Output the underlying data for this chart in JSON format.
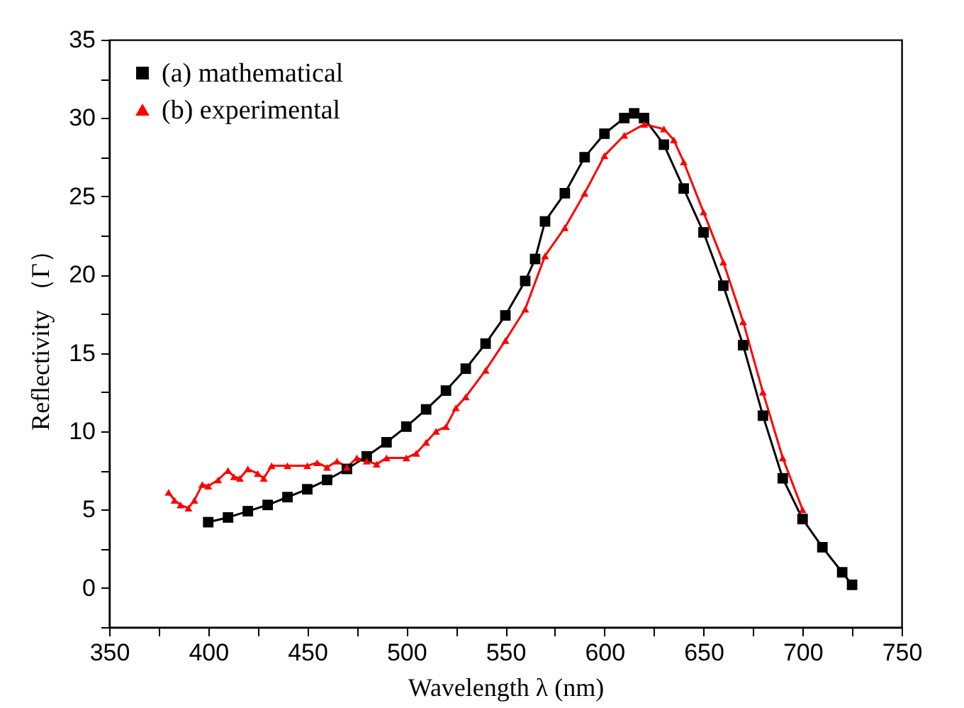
{
  "chart_data": {
    "type": "line",
    "xlabel": "Wavelength λ (nm)",
    "ylabel": "Reflectivity （Γ）",
    "xlim": [
      350,
      750
    ],
    "ylim": [
      -2.5,
      35
    ],
    "xticks": [
      350,
      {
        "value": 375,
        "label": null
      },
      400,
      {
        "value": 425,
        "label": null
      },
      450,
      {
        "value": 475,
        "label": null
      },
      500,
      {
        "value": 525,
        "label": null
      },
      550,
      {
        "value": 575,
        "label": null
      },
      600,
      {
        "value": 625,
        "label": null
      },
      650,
      {
        "value": 675,
        "label": null
      },
      700,
      {
        "value": 725,
        "label": null
      },
      750
    ],
    "yticks": [
      {
        "value": -2.5,
        "label": null
      },
      0,
      {
        "value": 2.5,
        "label": null
      },
      5,
      {
        "value": 7.5,
        "label": null
      },
      10,
      {
        "value": 12.5,
        "label": null
      },
      15,
      {
        "value": 17.5,
        "label": null
      },
      20,
      {
        "value": 22.5,
        "label": null
      },
      25,
      {
        "value": 27.5,
        "label": null
      },
      30,
      {
        "value": 32.5,
        "label": null
      },
      35
    ],
    "grid": false,
    "legend": "top left",
    "line_style": "solid",
    "series": [
      {
        "name": "(a) mathematical",
        "color": "#000000",
        "marker": "square",
        "x": [
          400,
          410,
          420,
          430,
          440,
          450,
          460,
          470,
          480,
          490,
          500,
          510,
          520,
          530,
          540,
          550,
          560,
          565,
          570,
          580,
          590,
          600,
          610,
          615,
          620,
          630,
          640,
          650,
          660,
          670,
          680,
          690,
          700,
          710,
          720,
          725
        ],
        "values": [
          4.2,
          4.5,
          4.9,
          5.3,
          5.8,
          6.3,
          6.9,
          7.6,
          8.4,
          9.3,
          10.3,
          11.4,
          12.6,
          14.0,
          15.6,
          17.4,
          19.6,
          21.0,
          23.4,
          25.2,
          27.5,
          29.0,
          30.0,
          30.3,
          30.0,
          28.3,
          25.5,
          22.7,
          19.3,
          15.5,
          11.0,
          7.0,
          4.4,
          2.6,
          1.0,
          0.2
        ]
      },
      {
        "name": "(b) experimental",
        "color": "#ff0000",
        "marker": "triangle",
        "x": [
          380,
          383,
          386,
          390,
          393,
          397,
          400,
          405,
          410,
          413,
          416,
          420,
          425,
          428,
          432,
          440,
          450,
          455,
          460,
          465,
          470,
          475,
          480,
          485,
          490,
          500,
          505,
          510,
          515,
          520,
          525,
          530,
          540,
          550,
          560,
          570,
          580,
          590,
          600,
          610,
          620,
          630,
          635,
          640,
          650,
          660,
          670,
          680,
          690,
          700
        ],
        "values": [
          6.1,
          5.6,
          5.3,
          5.1,
          5.6,
          6.6,
          6.5,
          6.9,
          7.5,
          7.1,
          7.0,
          7.6,
          7.3,
          7.0,
          7.8,
          7.8,
          7.8,
          8.0,
          7.7,
          8.1,
          7.7,
          8.3,
          8.1,
          7.9,
          8.3,
          8.3,
          8.6,
          9.3,
          10.0,
          10.3,
          11.5,
          12.2,
          13.9,
          15.8,
          17.8,
          21.2,
          23.0,
          25.2,
          27.6,
          28.9,
          29.6,
          29.3,
          28.6,
          27.2,
          24.0,
          20.8,
          17.0,
          12.5,
          8.3,
          5.0
        ]
      }
    ]
  }
}
